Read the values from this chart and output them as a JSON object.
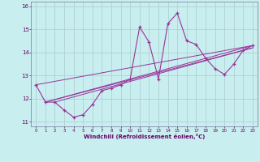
{
  "xlabel": "Windchill (Refroidissement éolien,°C)",
  "background_color": "#c8eef0",
  "line_color": "#993399",
  "grid_color": "#aacccc",
  "xlim": [
    -0.5,
    23.5
  ],
  "ylim": [
    10.8,
    16.2
  ],
  "yticks": [
    11,
    12,
    13,
    14,
    15,
    16
  ],
  "xticks": [
    0,
    1,
    2,
    3,
    4,
    5,
    6,
    7,
    8,
    9,
    10,
    11,
    12,
    13,
    14,
    15,
    16,
    17,
    18,
    19,
    20,
    21,
    22,
    23
  ],
  "main_line": {
    "x": [
      0,
      1,
      2,
      3,
      4,
      5,
      6,
      7,
      8,
      9,
      10,
      11,
      12,
      13,
      14,
      15,
      16,
      17,
      18,
      19,
      20,
      21,
      22,
      23
    ],
    "y": [
      12.6,
      11.85,
      11.85,
      11.5,
      11.2,
      11.3,
      11.75,
      12.35,
      12.45,
      12.6,
      12.85,
      15.1,
      14.45,
      12.85,
      15.25,
      15.7,
      14.5,
      14.35,
      13.75,
      13.3,
      13.05,
      13.5,
      14.1,
      14.3
    ]
  },
  "trend_lines": [
    {
      "x": [
        0,
        23
      ],
      "y": [
        12.6,
        14.3
      ]
    },
    {
      "x": [
        1,
        23
      ],
      "y": [
        11.85,
        14.3
      ]
    },
    {
      "x": [
        1,
        23
      ],
      "y": [
        11.85,
        14.2
      ]
    },
    {
      "x": [
        2,
        23
      ],
      "y": [
        11.85,
        14.2
      ]
    }
  ]
}
